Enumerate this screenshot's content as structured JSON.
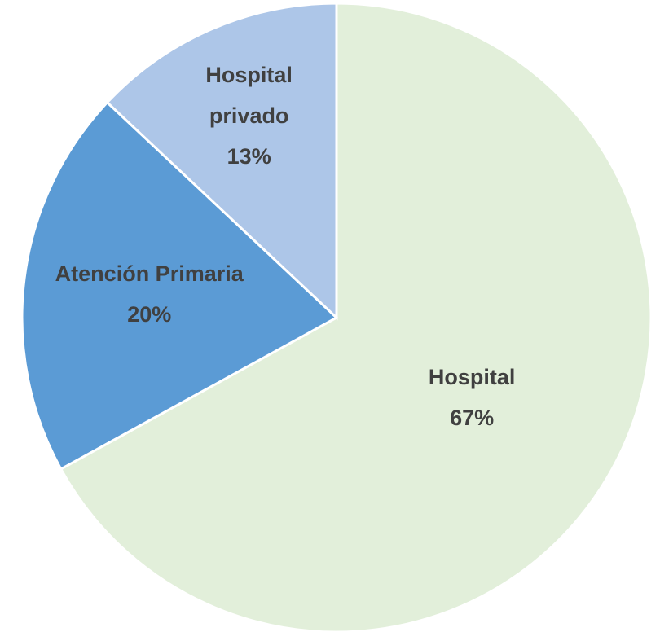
{
  "chart_data": {
    "type": "pie",
    "categories": [
      "Hospital",
      "Atención Primaria",
      "Hospital privado"
    ],
    "values": [
      67,
      20,
      13
    ],
    "value_labels": [
      "67%",
      "20%",
      "13%"
    ],
    "colors": [
      "#e2efda",
      "#5b9bd5",
      "#adc6e8"
    ]
  }
}
